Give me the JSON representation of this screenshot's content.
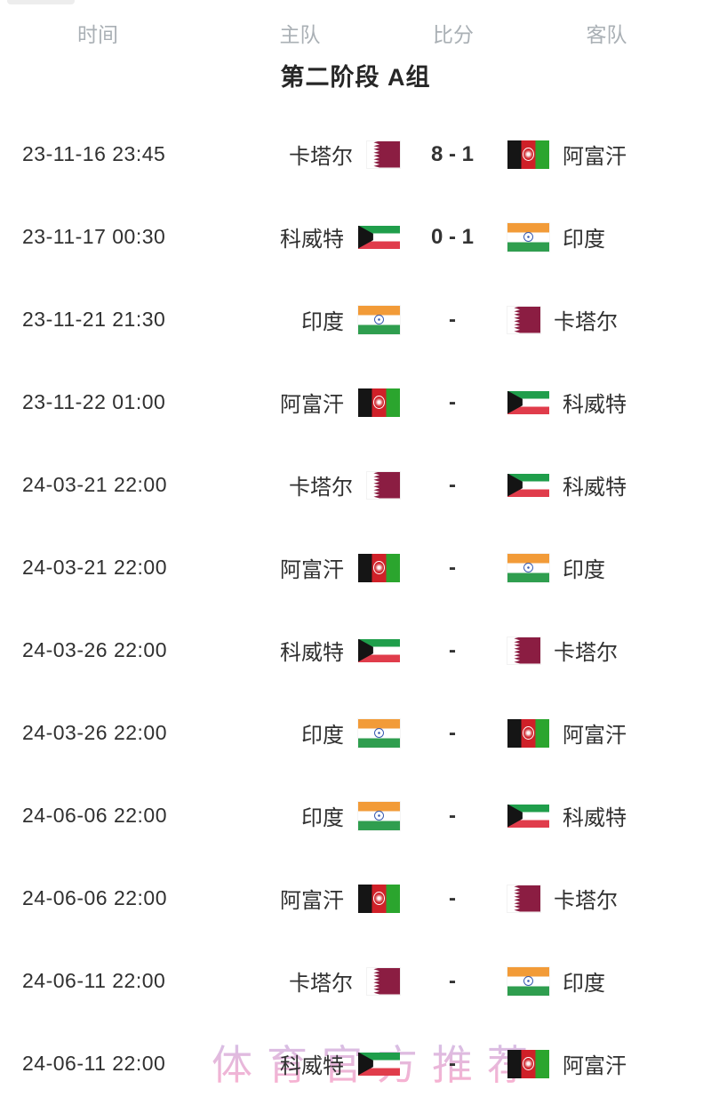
{
  "header": {
    "columns": [
      "时间",
      "主队",
      "比分",
      "客队"
    ]
  },
  "group_title": "第二阶段 A组",
  "watermark": {
    "text": "体育官方推荐"
  },
  "matches": [
    {
      "time": "23-11-16 23:45",
      "home": "卡塔尔",
      "home_flag": "qatar",
      "score": "8 - 1",
      "away": "阿富汗",
      "away_flag": "afghanistan"
    },
    {
      "time": "23-11-17 00:30",
      "home": "科威特",
      "home_flag": "kuwait",
      "score": "0 - 1",
      "away": "印度",
      "away_flag": "india"
    },
    {
      "time": "23-11-21 21:30",
      "home": "印度",
      "home_flag": "india",
      "score": "-",
      "away": "卡塔尔",
      "away_flag": "qatar"
    },
    {
      "time": "23-11-22 01:00",
      "home": "阿富汗",
      "home_flag": "afghanistan",
      "score": "-",
      "away": "科威特",
      "away_flag": "kuwait"
    },
    {
      "time": "24-03-21 22:00",
      "home": "卡塔尔",
      "home_flag": "qatar",
      "score": "-",
      "away": "科威特",
      "away_flag": "kuwait"
    },
    {
      "time": "24-03-21 22:00",
      "home": "阿富汗",
      "home_flag": "afghanistan",
      "score": "-",
      "away": "印度",
      "away_flag": "india"
    },
    {
      "time": "24-03-26 22:00",
      "home": "科威特",
      "home_flag": "kuwait",
      "score": "-",
      "away": "卡塔尔",
      "away_flag": "qatar"
    },
    {
      "time": "24-03-26 22:00",
      "home": "印度",
      "home_flag": "india",
      "score": "-",
      "away": "阿富汗",
      "away_flag": "afghanistan"
    },
    {
      "time": "24-06-06 22:00",
      "home": "印度",
      "home_flag": "india",
      "score": "-",
      "away": "科威特",
      "away_flag": "kuwait"
    },
    {
      "time": "24-06-06 22:00",
      "home": "阿富汗",
      "home_flag": "afghanistan",
      "score": "-",
      "away": "卡塔尔",
      "away_flag": "qatar"
    },
    {
      "time": "24-06-11 22:00",
      "home": "卡塔尔",
      "home_flag": "qatar",
      "score": "-",
      "away": "印度",
      "away_flag": "india"
    },
    {
      "time": "24-06-11 22:00",
      "home": "科威特",
      "home_flag": "kuwait",
      "score": "-",
      "away": "阿富汗",
      "away_flag": "afghanistan"
    }
  ],
  "colors": {
    "header_gray": "#aab0b5",
    "text_dark": "#303030",
    "title_dark": "#262626",
    "watermark_pink": "#f59fc6",
    "watermark_lavender": "#c3b3e6",
    "qatar_maroon": "#8b1d42",
    "kuwait_green": "#1f9e4b",
    "kuwait_red": "#e03c4b",
    "kuwait_black": "#141414",
    "india_saffron": "#f29b38",
    "india_green": "#2f9e4f",
    "india_navy": "#3a5bb0",
    "afghan_black": "#151515",
    "afghan_red": "#cf2028",
    "afghan_green": "#2ba52e"
  }
}
